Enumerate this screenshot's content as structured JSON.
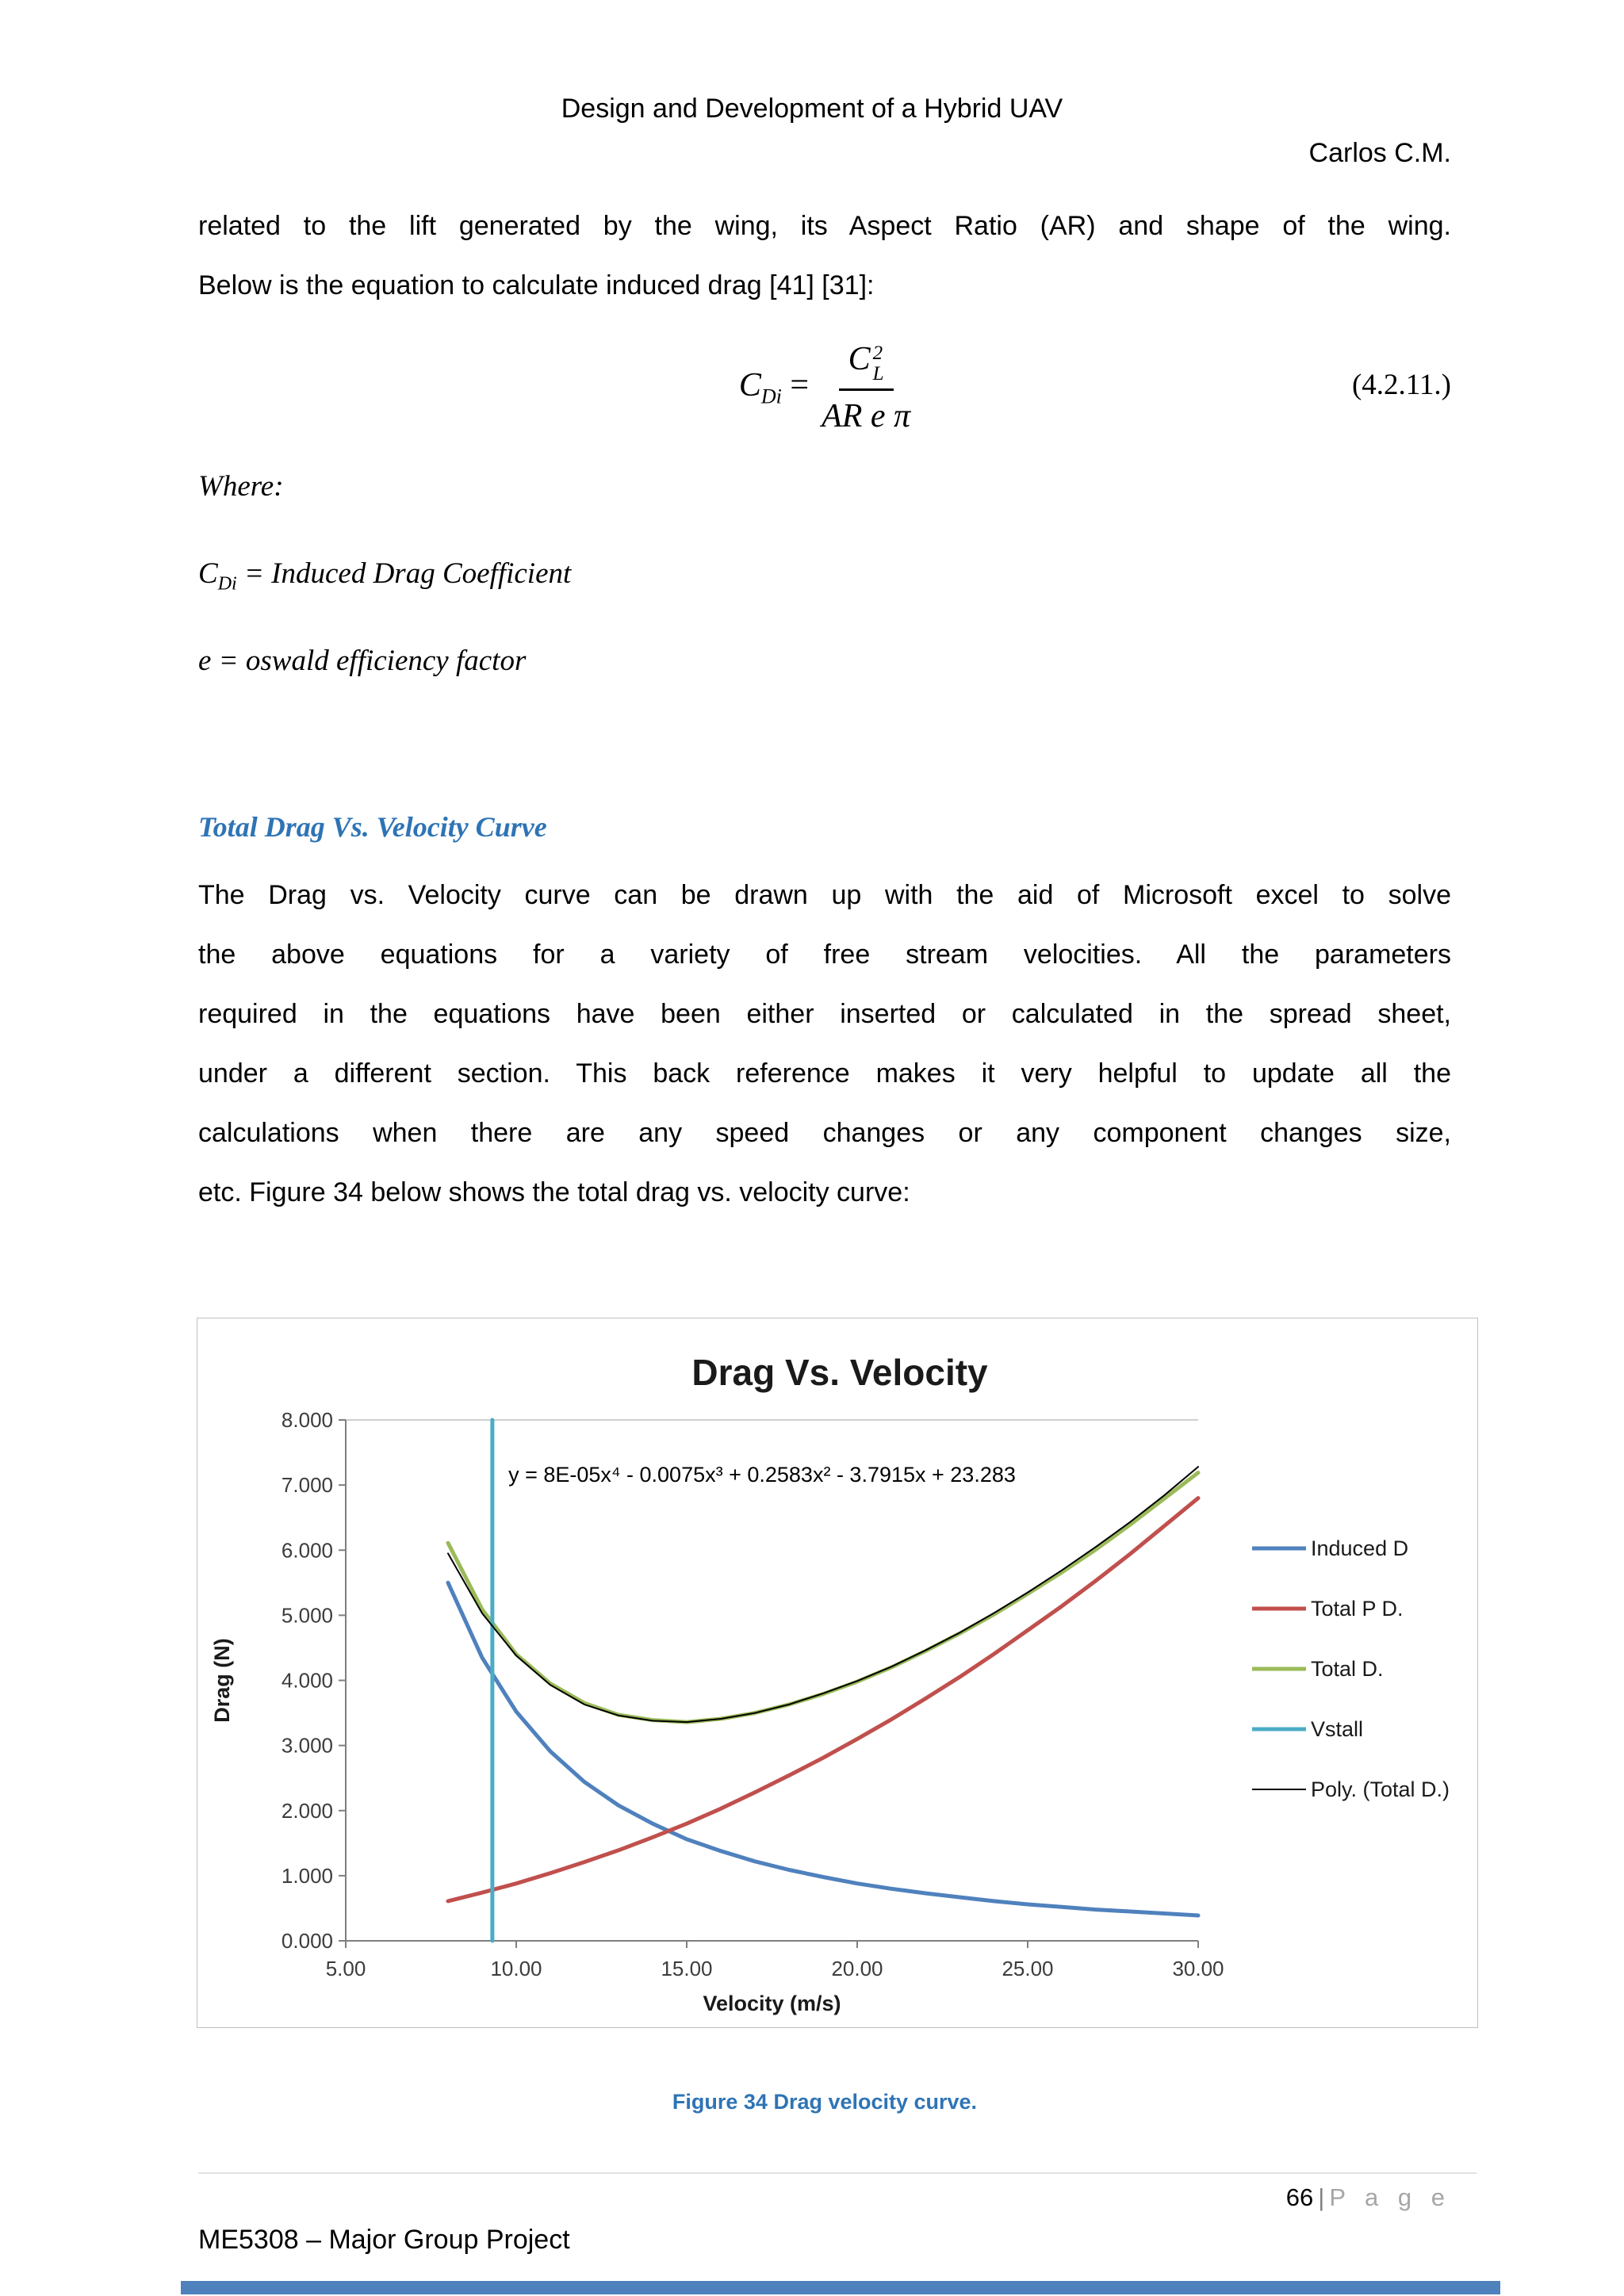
{
  "header": {
    "title": "Design and Development of a Hybrid UAV",
    "author": "Carlos C.M."
  },
  "body": {
    "para1_lines": [
      "related to the lift generated by the wing, its Aspect Ratio (AR) and shape of the wing.",
      "Below is the equation to calculate induced drag [41] [31]:"
    ],
    "equation": {
      "lhs_var": "C",
      "lhs_sub": "Di",
      "equals": "=",
      "num_var": "C",
      "num_sup": "2",
      "num_sub": "L",
      "denominator": "AR e π",
      "number": "(4.2.11.)"
    },
    "where_label": "Where:",
    "def1": {
      "var": "C",
      "sub": "Di",
      "rest": " = Induced Drag Coefficient"
    },
    "def2": "e = oswald efficiency factor",
    "section_heading": "Total Drag Vs. Velocity Curve",
    "para2_lines": [
      "The Drag vs. Velocity curve can be drawn up with the aid of Microsoft excel to solve",
      "the above equations for a variety of free stream velocities. All the parameters",
      "required in the equations have been either inserted or calculated in the spread sheet,",
      "under a different section. This back reference makes it very helpful to update all the",
      "calculations when there are any speed changes or any component changes size,",
      "etc. Figure 34 below shows the total drag vs. velocity curve:"
    ],
    "figure_caption": "Figure 34 Drag velocity curve."
  },
  "footer": {
    "page_number": "66",
    "pipe": "|",
    "page_word": "P a g e",
    "project": "ME5308 – Major Group Project"
  },
  "chart_data": {
    "type": "line",
    "title": "Drag Vs. Velocity",
    "xlabel": "Velocity (m/s)",
    "ylabel": "Drag (N)",
    "xlim": [
      5,
      30
    ],
    "ylim": [
      0,
      8
    ],
    "x_ticks": [
      "5.00",
      "10.00",
      "15.00",
      "20.00",
      "25.00",
      "30.00"
    ],
    "y_ticks": [
      "0.000",
      "1.000",
      "2.000",
      "3.000",
      "4.000",
      "5.000",
      "6.000",
      "7.000",
      "8.000"
    ],
    "annotation": "y = 8E-05x⁴ - 0.0075x³ + 0.2583x² - 3.7915x + 23.283",
    "legend_position": "right",
    "grid": false,
    "series": [
      {
        "name": "Induced D",
        "color": "#4F81BD",
        "width": 5,
        "points": [
          [
            8,
            5.5
          ],
          [
            9,
            4.35
          ],
          [
            10,
            3.52
          ],
          [
            11,
            2.91
          ],
          [
            12,
            2.44
          ],
          [
            13,
            2.08
          ],
          [
            14,
            1.8
          ],
          [
            15,
            1.56
          ],
          [
            16,
            1.38
          ],
          [
            17,
            1.22
          ],
          [
            18,
            1.09
          ],
          [
            19,
            0.98
          ],
          [
            20,
            0.88
          ],
          [
            21,
            0.8
          ],
          [
            22,
            0.73
          ],
          [
            23,
            0.67
          ],
          [
            24,
            0.61
          ],
          [
            25,
            0.56
          ],
          [
            26,
            0.52
          ],
          [
            27,
            0.48
          ],
          [
            28,
            0.45
          ],
          [
            29,
            0.42
          ],
          [
            30,
            0.39
          ]
        ]
      },
      {
        "name": "Total P D.",
        "color": "#C0504D",
        "width": 5,
        "points": [
          [
            8,
            0.61
          ],
          [
            9,
            0.74
          ],
          [
            10,
            0.88
          ],
          [
            11,
            1.04
          ],
          [
            12,
            1.21
          ],
          [
            13,
            1.39
          ],
          [
            14,
            1.59
          ],
          [
            15,
            1.8
          ],
          [
            16,
            2.03
          ],
          [
            17,
            2.28
          ],
          [
            18,
            2.54
          ],
          [
            19,
            2.81
          ],
          [
            20,
            3.1
          ],
          [
            21,
            3.4
          ],
          [
            22,
            3.72
          ],
          [
            23,
            4.05
          ],
          [
            24,
            4.4
          ],
          [
            25,
            4.77
          ],
          [
            26,
            5.14
          ],
          [
            27,
            5.53
          ],
          [
            28,
            5.94
          ],
          [
            29,
            6.37
          ],
          [
            30,
            6.8
          ]
        ]
      },
      {
        "name": "Total D.",
        "color": "#9BBB59",
        "width": 5,
        "points": [
          [
            8,
            6.11
          ],
          [
            9,
            5.09
          ],
          [
            10,
            4.4
          ],
          [
            11,
            3.95
          ],
          [
            12,
            3.65
          ],
          [
            13,
            3.47
          ],
          [
            14,
            3.39
          ],
          [
            15,
            3.36
          ],
          [
            16,
            3.41
          ],
          [
            17,
            3.5
          ],
          [
            18,
            3.63
          ],
          [
            19,
            3.79
          ],
          [
            20,
            3.98
          ],
          [
            21,
            4.2
          ],
          [
            22,
            4.45
          ],
          [
            23,
            4.72
          ],
          [
            24,
            5.01
          ],
          [
            25,
            5.33
          ],
          [
            26,
            5.66
          ],
          [
            27,
            6.01
          ],
          [
            28,
            6.39
          ],
          [
            29,
            6.79
          ],
          [
            30,
            7.19
          ]
        ]
      },
      {
        "name": "Vstall",
        "color": "#4BACC6",
        "width": 5,
        "points": [
          [
            9.3,
            0
          ],
          [
            9.3,
            8
          ]
        ]
      },
      {
        "name": "Poly. (Total D.)",
        "color": "#000000",
        "width": 2,
        "points": [
          [
            8,
            5.95
          ],
          [
            9,
            5.03
          ],
          [
            10,
            4.38
          ],
          [
            11,
            3.93
          ],
          [
            12,
            3.63
          ],
          [
            13,
            3.46
          ],
          [
            14,
            3.38
          ],
          [
            15,
            3.36
          ],
          [
            16,
            3.41
          ],
          [
            17,
            3.5
          ],
          [
            18,
            3.63
          ],
          [
            19,
            3.8
          ],
          [
            20,
            3.99
          ],
          [
            21,
            4.21
          ],
          [
            22,
            4.46
          ],
          [
            23,
            4.73
          ],
          [
            24,
            5.03
          ],
          [
            25,
            5.35
          ],
          [
            26,
            5.69
          ],
          [
            27,
            6.05
          ],
          [
            28,
            6.43
          ],
          [
            29,
            6.84
          ],
          [
            30,
            7.28
          ]
        ]
      }
    ]
  }
}
